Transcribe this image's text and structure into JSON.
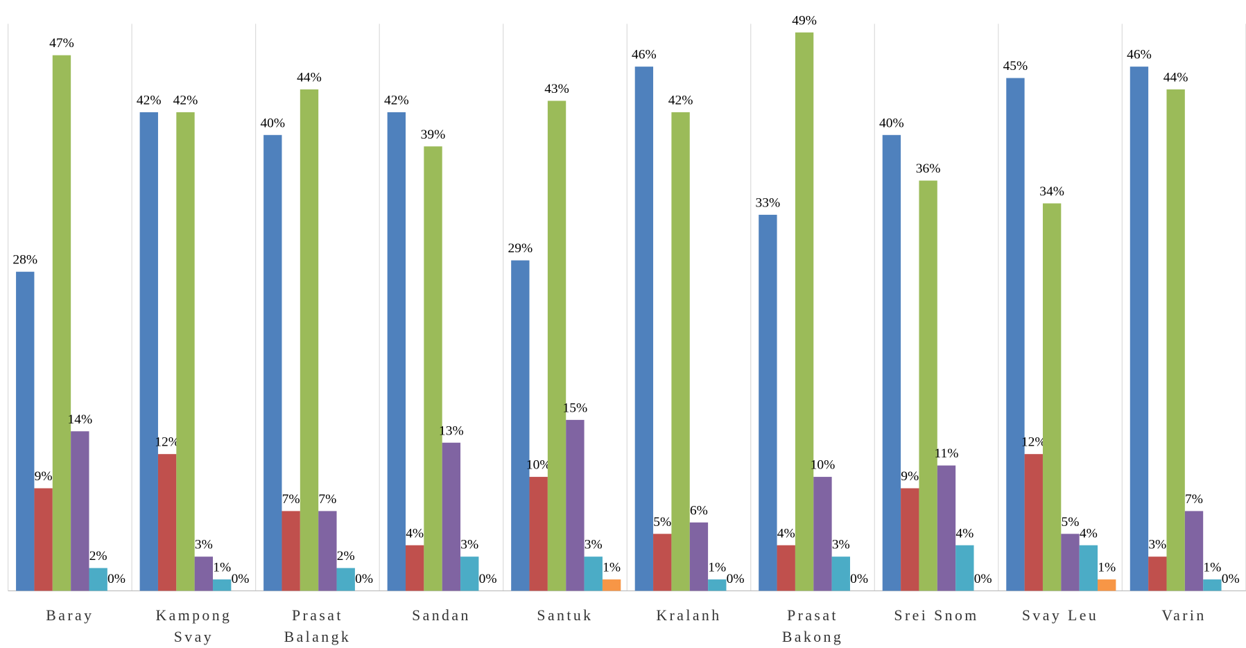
{
  "chart_data": {
    "type": "bar",
    "categories": [
      "Baray",
      "Kampong Svay",
      "Prasat Balangk",
      "Sandan",
      "Santuk",
      "Kralanh",
      "Prasat Bakong",
      "Srei Snom",
      "Svay Leu",
      "Varin"
    ],
    "series": [
      {
        "color": "#4f81bd",
        "values": [
          28,
          42,
          40,
          42,
          29,
          46,
          33,
          40,
          45,
          46
        ],
        "value_labels": [
          "28%",
          "42%",
          "40%",
          "42%",
          "29%",
          "46%",
          "33%",
          "40%",
          "45%",
          "46%"
        ]
      },
      {
        "color": "#c0504d",
        "values": [
          9,
          12,
          7,
          4,
          10,
          5,
          4,
          9,
          12,
          3
        ],
        "value_labels": [
          "9%",
          "12%",
          "7%",
          "4%",
          "10%",
          "5%",
          "4%",
          "9%",
          "12%",
          "3%"
        ]
      },
      {
        "color": "#9bbb59",
        "values": [
          47,
          42,
          44,
          39,
          43,
          42,
          49,
          36,
          34,
          44
        ],
        "value_labels": [
          "47%",
          "42%",
          "44%",
          "39%",
          "43%",
          "42%",
          "49%",
          "36%",
          "34%",
          "44%"
        ]
      },
      {
        "color": "#8064a2",
        "values": [
          14,
          3,
          7,
          13,
          15,
          6,
          10,
          11,
          5,
          7
        ],
        "value_labels": [
          "14%",
          "3%",
          "7%",
          "13%",
          "15%",
          "6%",
          "10%",
          "11%",
          "5%",
          "7%"
        ]
      },
      {
        "color": "#4bacc6",
        "values": [
          2,
          1,
          2,
          3,
          3,
          1,
          3,
          4,
          4,
          1
        ],
        "value_labels": [
          "2%",
          "1%",
          "2%",
          "3%",
          "3%",
          "1%",
          "3%",
          "4%",
          "4%",
          "1%"
        ]
      },
      {
        "color": "#f79646",
        "values": [
          0,
          0,
          0,
          0,
          1,
          0,
          0,
          0,
          1,
          0
        ],
        "value_labels": [
          "0%",
          "0%",
          "0%",
          "0%",
          "1%",
          "0%",
          "0%",
          "0%",
          "1%",
          "0%"
        ]
      }
    ],
    "ylim": [
      0,
      50
    ]
  }
}
